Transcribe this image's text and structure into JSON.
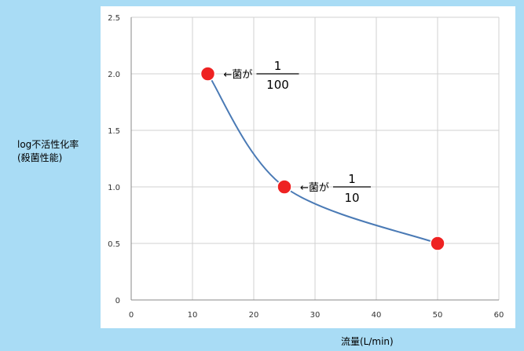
{
  "chart_data": {
    "type": "scatter",
    "xlabel": "流量(L/min)",
    "ylabel_line1": "log不活性化率",
    "ylabel_line2": "(殺菌性能)",
    "xlim": [
      0,
      60
    ],
    "ylim": [
      0,
      2.5
    ],
    "x_ticks": [
      "0",
      "10",
      "20",
      "30",
      "40",
      "50",
      "60"
    ],
    "y_ticks": [
      "0",
      "0.5",
      "1.0",
      "1.5",
      "2.0",
      "2.5"
    ],
    "grid": true,
    "marker_color": "#ee2222",
    "line_color": "#4a7ab5",
    "series": [
      {
        "x": [
          12.5,
          25,
          50
        ],
        "y": [
          2.0,
          1.0,
          0.5
        ]
      }
    ],
    "annotations": [
      {
        "prefix": "←菌が",
        "numerator": "1",
        "denominator": "100"
      },
      {
        "prefix": "←菌が",
        "numerator": "1",
        "denominator": "10"
      }
    ]
  }
}
